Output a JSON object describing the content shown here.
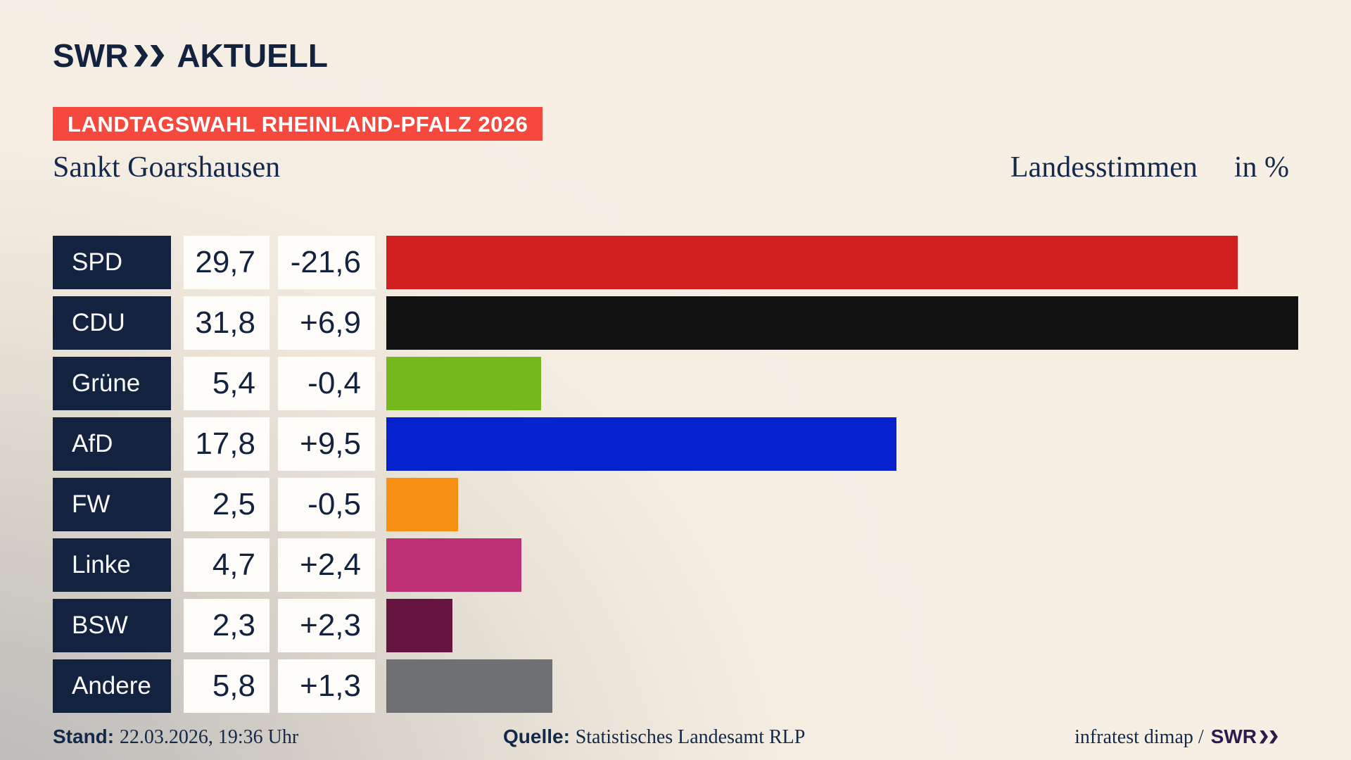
{
  "header": {
    "logo": {
      "swr": "SWR",
      "aktuell": "AKTUELL"
    },
    "badge": "LANDTAGSWAHL RHEINLAND-PFALZ 2026"
  },
  "title": {
    "left": "Sankt Goarshausen",
    "right_label": "Landesstimmen",
    "right_unit": "in %"
  },
  "chart_data": {
    "type": "bar",
    "orientation": "horizontal",
    "title": "Landtagswahl Rheinland-Pfalz 2026 - Sankt Goarshausen - Landesstimmen in %",
    "unit": "%",
    "max_value": 31.8,
    "categories": [
      "SPD",
      "CDU",
      "Grüne",
      "AfD",
      "FW",
      "Linke",
      "BSW",
      "Andere"
    ],
    "values": [
      29.7,
      31.8,
      5.4,
      17.8,
      2.5,
      4.7,
      2.3,
      5.8
    ],
    "value_labels": [
      "29,7",
      "31,8",
      "5,4",
      "17,8",
      "2,5",
      "4,7",
      "2,3",
      "5,8"
    ],
    "changes": [
      "-21,6",
      "+6,9",
      "-0,4",
      "+9,5",
      "-0,5",
      "+2,4",
      "+2,3",
      "+1,3"
    ],
    "colors": [
      "#d21f1f",
      "#121212",
      "#74b81c",
      "#0522cc",
      "#f78f13",
      "#bd3074",
      "#651540",
      "#6f7072"
    ],
    "legend_position": "none",
    "grid": false
  },
  "theme": {
    "background_cream": "#f7efe4",
    "background_gray": "#b7b6b4",
    "navy": "#13223f",
    "badge_red": "#f4493c",
    "cell_white": "#fffdfa",
    "brand_violet": "#2b1b4e"
  },
  "footer": {
    "stand_label": "Stand:",
    "stand_value": "22.03.2026, 19:36 Uhr",
    "quelle_label": "Quelle:",
    "quelle_value": "Statistisches Landesamt RLP",
    "credit_prefix": "infratest dimap /",
    "credit_brand": "SWR"
  }
}
